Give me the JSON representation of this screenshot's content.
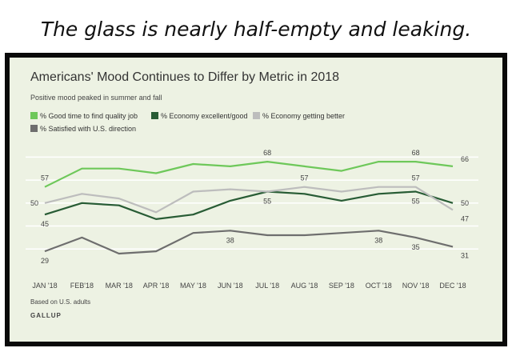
{
  "caption": "The glass is nearly half-empty and leaking.",
  "chart_data": {
    "type": "line",
    "title": "Americans' Mood Continues to Differ by Metric in 2018",
    "subtitle": "Positive mood peaked in summer and fall",
    "categories": [
      "JAN '18",
      "FEB'18",
      "MAR '18",
      "APR '18",
      "MAY '18",
      "JUN '18",
      "JUL '18",
      "AUG '18",
      "SEP '18",
      "OCT '18",
      "NOV '18",
      "DEC '18"
    ],
    "series": [
      {
        "name": "% Good time to find quality job",
        "color": "#6ec85a",
        "values": [
          57,
          65,
          65,
          63,
          67,
          66,
          68,
          66,
          64,
          68,
          68,
          66
        ],
        "labels": [
          {
            "i": 0,
            "text": "57",
            "pos": "above"
          },
          {
            "i": 6,
            "text": "68",
            "pos": "above"
          },
          {
            "i": 10,
            "text": "68",
            "pos": "above"
          },
          {
            "i": 11,
            "text": "66",
            "pos": "right-above"
          }
        ]
      },
      {
        "name": "% Economy excellent/good",
        "color": "#285c35",
        "values": [
          45,
          50,
          49,
          43,
          45,
          51,
          55,
          54,
          51,
          54,
          55,
          50
        ],
        "labels": [
          {
            "i": 0,
            "text": "45",
            "pos": "below"
          },
          {
            "i": 6,
            "text": "55",
            "pos": "below"
          },
          {
            "i": 10,
            "text": "55",
            "pos": "below"
          },
          {
            "i": 11,
            "text": "50",
            "pos": "right"
          }
        ]
      },
      {
        "name": "% Economy getting better",
        "color": "#bdbdbd",
        "values": [
          50,
          54,
          52,
          46,
          55,
          56,
          55,
          57,
          55,
          57,
          57,
          47
        ],
        "labels": [
          {
            "i": 0,
            "text": "50",
            "pos": "left"
          },
          {
            "i": 7,
            "text": "57",
            "pos": "above"
          },
          {
            "i": 10,
            "text": "57",
            "pos": "above"
          },
          {
            "i": 11,
            "text": "47",
            "pos": "right-below"
          }
        ]
      },
      {
        "name": "% Satisfied with U.S. direction",
        "color": "#6e6e6e",
        "values": [
          29,
          35,
          28,
          29,
          37,
          38,
          36,
          36,
          37,
          38,
          35,
          31
        ],
        "labels": [
          {
            "i": 0,
            "text": "29",
            "pos": "below"
          },
          {
            "i": 5,
            "text": "38",
            "pos": "below"
          },
          {
            "i": 9,
            "text": "38",
            "pos": "below"
          },
          {
            "i": 10,
            "text": "35",
            "pos": "below"
          },
          {
            "i": 11,
            "text": "31",
            "pos": "right-below"
          }
        ]
      }
    ],
    "ylim": [
      20,
      75
    ],
    "grid": true,
    "legend_placement": "top-left"
  },
  "note": "Based on U.S. adults",
  "brand": "GALLUP"
}
